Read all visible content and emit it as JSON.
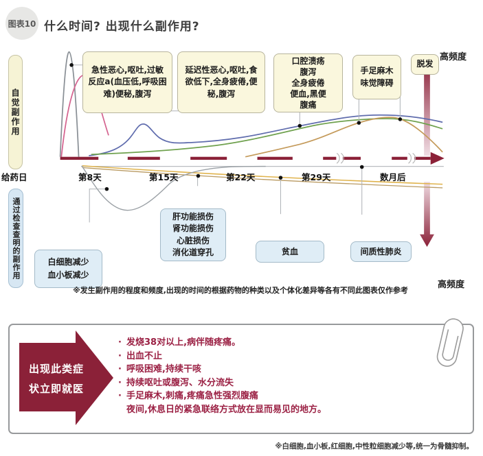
{
  "header": {
    "badge": "图表10",
    "title": "什么时间? 出现什么副作用?"
  },
  "chart": {
    "left_labels": {
      "top": "自觉副作用",
      "bottom": "通过检查查明的副作用"
    },
    "freq_label_top": "高频度",
    "freq_label_bottom": "高频度",
    "axis": {
      "ticks": [
        "给药日",
        "第8天",
        "第15天",
        "第22天",
        "第29天",
        "数月后"
      ]
    },
    "upper_boxes": {
      "acute": "急性恶心,呕吐,过敏反应a(血压低,呼吸困难)便秘,腹泻",
      "delayed": "延迟性恶心,呕吐,食欲低下,全身疲倦,便秘,腹泻",
      "oral": "口腔溃疡\n腹泻\n全身疲倦\n便血,黑便\n腹痛",
      "hands": "手足麻木\n味觉障碍",
      "hair": "脱发"
    },
    "lower_boxes": {
      "wbc": "白细胞减少\n血小板减少",
      "liver": "肝功能损伤\n肾功能损伤\n心脏损伤\n消化道穿孔",
      "anemia": "贫血",
      "pneumonia": "间质性肺炎"
    },
    "note": "※发生副作用的程度和频度,出现的时间的根据药物的种类以及个体化差异等各有不同此图表仅作参考"
  },
  "alert": {
    "arrow_label": "出现此类症\n状立即就医",
    "bullets": [
      {
        "bullet": "·",
        "text": "发烧38对以上,病伴随疼痛。"
      },
      {
        "bullet": "·",
        "text": "出血不止"
      },
      {
        "bullet": "·",
        "text": "呼吸困难,持续干咳"
      },
      {
        "bullet": "·",
        "text": "持续呕吐或腹泻、水分流失"
      },
      {
        "bullet": "·",
        "text": "手足麻木,刺痛,疼痛急性强烈腹痛"
      },
      {
        "bullet": "",
        "text": "夜间,休息日的紧急联络方式放在显而易见的地方。"
      }
    ]
  },
  "footnote": "※白细胞,血小板,红细胞,中性粒细胞减少等,统一为骨髓抑制。",
  "colors": {
    "maroon": "#8b2138",
    "bullet_red": "#9b2144",
    "yellow_box_bg": "#faf7dd",
    "blue_box_bg": "#dfedf6",
    "curve_gray": "#8a9096",
    "curve_pink": "#d4638f",
    "curve_blue": "#5f6cad",
    "curve_green": "#6fa14e",
    "curve_tan": "#c49a5a",
    "lower_gold": "#e0b34c"
  },
  "chart_data": {
    "type": "line",
    "title": "什么时间? 出现什么副作用?",
    "x_ticks": [
      "给药日",
      "第8天",
      "第15天",
      "第22天",
      "第29天",
      "数月后"
    ],
    "ylabel_top": "高频度(向上箭头)",
    "ylabel_bottom": "高频度(向下箭头)",
    "qualitative": true,
    "series": [
      {
        "name": "急性副作用(灰色尖峰)",
        "callout": "急性恶心,呕吐,过敏反应a(血压低,呼吸困难)便秘,腹泻",
        "color": "#8a9096",
        "values": [
          1.0,
          0.02,
          0,
          0,
          0,
          0
        ]
      },
      {
        "name": "急性副作用(粉色峰)",
        "callout": "急性恶心,呕吐,过敏反应a(血压低,呼吸困难)便秘,腹泻",
        "color": "#d4638f",
        "values": [
          0.75,
          0.1,
          0,
          0,
          0,
          0
        ]
      },
      {
        "name": "延迟性副作用(蓝色)",
        "callout": "延迟性恶心,呕吐,食欲低下,全身疲倦,便秘,腹泻",
        "color": "#5f6cad",
        "values": [
          0.02,
          0.3,
          0.12,
          0.22,
          0.3,
          0.38
        ]
      },
      {
        "name": "蓄积性副作用(绿色)",
        "callout": "口腔溃疡 腹泻 全身疲倦 便血,黑便 腹痛",
        "color": "#6fa14e",
        "values": [
          0.01,
          0.04,
          0.1,
          0.16,
          0.27,
          0.36
        ]
      },
      {
        "name": "晚期副作用(棕色)",
        "callout": "手足麻木 味觉障碍 / 脱发",
        "color": "#c49a5a",
        "values": [
          0,
          0,
          0,
          0.12,
          0.3,
          0.36
        ]
      },
      {
        "name": "血细胞减少(下方灰色谷)",
        "callout": "白细胞减少 血小板减少",
        "color": "#9aa0a5",
        "values": [
          -0.02,
          -0.42,
          -0.1,
          0,
          0,
          0
        ]
      },
      {
        "name": "脏器功能损伤(下方金色线)",
        "callout": "肝功能损伤 肾功能损伤 心脏损伤 消化道穿孔 / 贫血 / 间质性肺炎",
        "color": "#e0b34c",
        "values": [
          -0.01,
          -0.07,
          -0.1,
          -0.13,
          -0.16,
          -0.19
        ]
      }
    ]
  }
}
